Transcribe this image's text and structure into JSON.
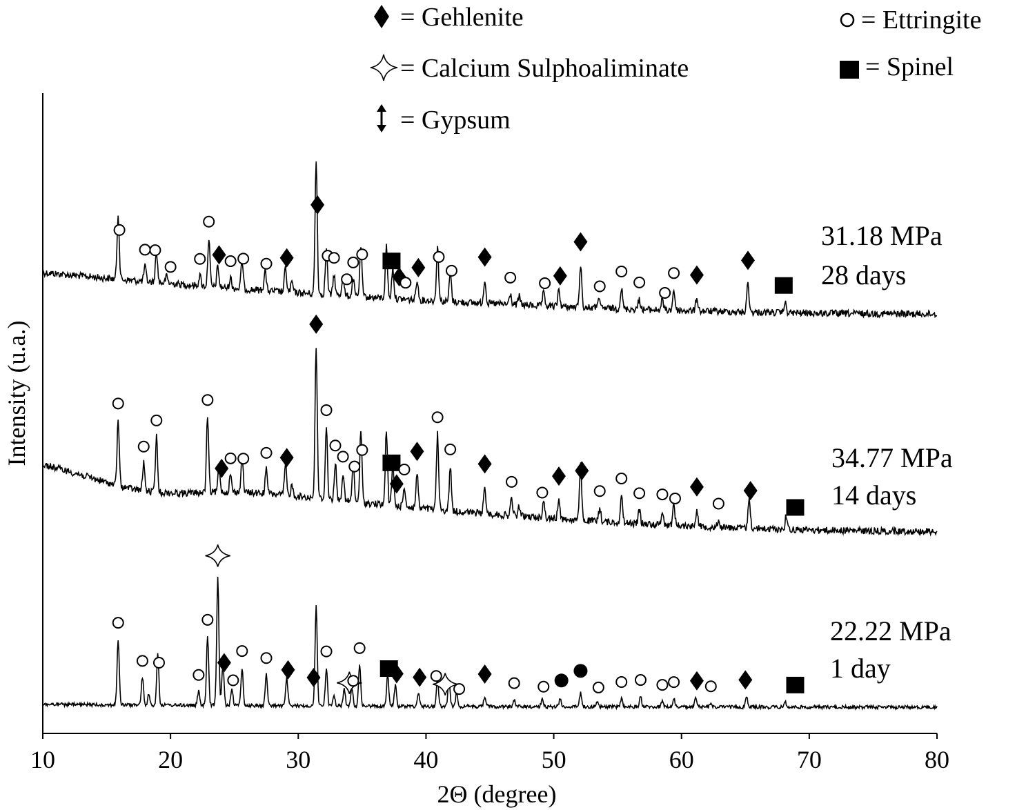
{
  "chart_data": {
    "type": "line",
    "xlabel": "2Θ (degree)",
    "ylabel": "Intensity (u.a.)",
    "xlim": [
      10,
      80
    ],
    "x_ticks": [
      10,
      20,
      30,
      40,
      50,
      60,
      70,
      80
    ],
    "grid": false,
    "legend_placement": "top",
    "legend": [
      {
        "symbol": "diamond",
        "text": "= Gehlenite"
      },
      {
        "symbol": "star",
        "text": "= Calcium Sulphoaliminate"
      },
      {
        "symbol": "arrow",
        "text": "= Gypsum"
      },
      {
        "symbol": "circle-open",
        "text": "= Ettringite"
      },
      {
        "symbol": "square",
        "text": "= Spinel"
      }
    ],
    "series": [
      {
        "label_line1": "31.18 MPa",
        "label_line2": "28 days",
        "markers": [
          {
            "s": "circle-open",
            "x": 16.0
          },
          {
            "s": "circle-open",
            "x": 18.0
          },
          {
            "s": "circle-open",
            "x": 18.8
          },
          {
            "s": "circle-open",
            "x": 20.0
          },
          {
            "s": "circle-open",
            "x": 22.3
          },
          {
            "s": "circle-open",
            "x": 23.0
          },
          {
            "s": "diamond",
            "x": 23.8
          },
          {
            "s": "circle-open",
            "x": 24.7
          },
          {
            "s": "circle-open",
            "x": 25.7
          },
          {
            "s": "circle-open",
            "x": 27.5
          },
          {
            "s": "diamond",
            "x": 29.1
          },
          {
            "s": "diamond",
            "x": 31.5
          },
          {
            "s": "circle-open",
            "x": 32.3
          },
          {
            "s": "circle-open",
            "x": 32.8
          },
          {
            "s": "circle-open",
            "x": 33.8
          },
          {
            "s": "circle-open",
            "x": 34.3
          },
          {
            "s": "circle-open",
            "x": 35.0
          },
          {
            "s": "square",
            "x": 37.3
          },
          {
            "s": "diamond",
            "x": 37.9
          },
          {
            "s": "circle-open",
            "x": 38.4
          },
          {
            "s": "diamond",
            "x": 39.4
          },
          {
            "s": "circle-open",
            "x": 41.0
          },
          {
            "s": "circle-open",
            "x": 42.0
          },
          {
            "s": "diamond",
            "x": 44.6
          },
          {
            "s": "circle-open",
            "x": 46.6
          },
          {
            "s": "circle-open",
            "x": 49.3
          },
          {
            "s": "diamond",
            "x": 50.5
          },
          {
            "s": "diamond",
            "x": 52.1
          },
          {
            "s": "circle-open",
            "x": 53.6
          },
          {
            "s": "circle-open",
            "x": 55.3
          },
          {
            "s": "circle-open",
            "x": 56.7
          },
          {
            "s": "circle-open",
            "x": 58.7
          },
          {
            "s": "circle-open",
            "x": 59.4
          },
          {
            "s": "diamond",
            "x": 61.2
          },
          {
            "s": "diamond",
            "x": 65.2
          },
          {
            "s": "square",
            "x": 68.0
          }
        ]
      },
      {
        "label_line1": "34.77 MPa",
        "label_line2": "14 days",
        "markers": [
          {
            "s": "circle-open",
            "x": 15.9
          },
          {
            "s": "circle-open",
            "x": 17.9
          },
          {
            "s": "circle-open",
            "x": 18.9
          },
          {
            "s": "circle-open",
            "x": 22.9
          },
          {
            "s": "diamond",
            "x": 24.0
          },
          {
            "s": "circle-open",
            "x": 24.7
          },
          {
            "s": "circle-open",
            "x": 25.7
          },
          {
            "s": "circle-open",
            "x": 27.5
          },
          {
            "s": "diamond",
            "x": 29.1
          },
          {
            "s": "diamond",
            "x": 31.4
          },
          {
            "s": "circle-open",
            "x": 32.2
          },
          {
            "s": "circle-open",
            "x": 32.9
          },
          {
            "s": "circle-open",
            "x": 33.5
          },
          {
            "s": "circle-open",
            "x": 34.4
          },
          {
            "s": "circle-open",
            "x": 35.0
          },
          {
            "s": "square",
            "x": 37.3
          },
          {
            "s": "diamond",
            "x": 37.7
          },
          {
            "s": "circle-open",
            "x": 38.3
          },
          {
            "s": "diamond",
            "x": 39.3
          },
          {
            "s": "circle-open",
            "x": 40.9
          },
          {
            "s": "circle-open",
            "x": 41.9
          },
          {
            "s": "diamond",
            "x": 44.6
          },
          {
            "s": "circle-open",
            "x": 46.7
          },
          {
            "s": "circle-open",
            "x": 49.1
          },
          {
            "s": "diamond",
            "x": 50.4
          },
          {
            "s": "diamond",
            "x": 52.2
          },
          {
            "s": "circle-open",
            "x": 53.6
          },
          {
            "s": "circle-open",
            "x": 55.3
          },
          {
            "s": "circle-open",
            "x": 56.7
          },
          {
            "s": "circle-open",
            "x": 58.5
          },
          {
            "s": "circle-open",
            "x": 59.5
          },
          {
            "s": "diamond",
            "x": 61.2
          },
          {
            "s": "circle-open",
            "x": 62.9
          },
          {
            "s": "diamond",
            "x": 65.4
          },
          {
            "s": "square",
            "x": 68.9
          }
        ]
      },
      {
        "label_line1": "22.22 MPa",
        "label_line2": "1 day",
        "markers": [
          {
            "s": "circle-open",
            "x": 15.9
          },
          {
            "s": "circle-open",
            "x": 17.8
          },
          {
            "s": "circle-open",
            "x": 19.1
          },
          {
            "s": "circle-open",
            "x": 22.2
          },
          {
            "s": "circle-open",
            "x": 22.9
          },
          {
            "s": "star",
            "x": 23.7
          },
          {
            "s": "diamond",
            "x": 24.2
          },
          {
            "s": "circle-open",
            "x": 24.9
          },
          {
            "s": "circle-open",
            "x": 25.6
          },
          {
            "s": "circle-open",
            "x": 27.5
          },
          {
            "s": "diamond",
            "x": 29.2
          },
          {
            "s": "diamond",
            "x": 31.2
          },
          {
            "s": "circle-open",
            "x": 32.2
          },
          {
            "s": "star",
            "x": 34.0
          },
          {
            "s": "circle-open",
            "x": 34.3
          },
          {
            "s": "circle-open",
            "x": 34.8
          },
          {
            "s": "square",
            "x": 37.1
          },
          {
            "s": "diamond",
            "x": 37.7
          },
          {
            "s": "diamond",
            "x": 39.5
          },
          {
            "s": "circle-open",
            "x": 40.8
          },
          {
            "s": "star",
            "x": 41.5
          },
          {
            "s": "circle-open",
            "x": 42.6
          },
          {
            "s": "diamond",
            "x": 44.6
          },
          {
            "s": "circle-open",
            "x": 46.9
          },
          {
            "s": "circle-open",
            "x": 49.2
          },
          {
            "s": "circle-filled",
            "x": 50.6
          },
          {
            "s": "circle-filled",
            "x": 52.1
          },
          {
            "s": "circle-open",
            "x": 53.5
          },
          {
            "s": "circle-open",
            "x": 55.3
          },
          {
            "s": "circle-open",
            "x": 56.8
          },
          {
            "s": "circle-open",
            "x": 58.5
          },
          {
            "s": "circle-open",
            "x": 59.4
          },
          {
            "s": "diamond",
            "x": 61.2
          },
          {
            "s": "circle-open",
            "x": 62.3
          },
          {
            "s": "diamond",
            "x": 65.0
          },
          {
            "s": "square",
            "x": 68.9
          }
        ]
      }
    ]
  }
}
